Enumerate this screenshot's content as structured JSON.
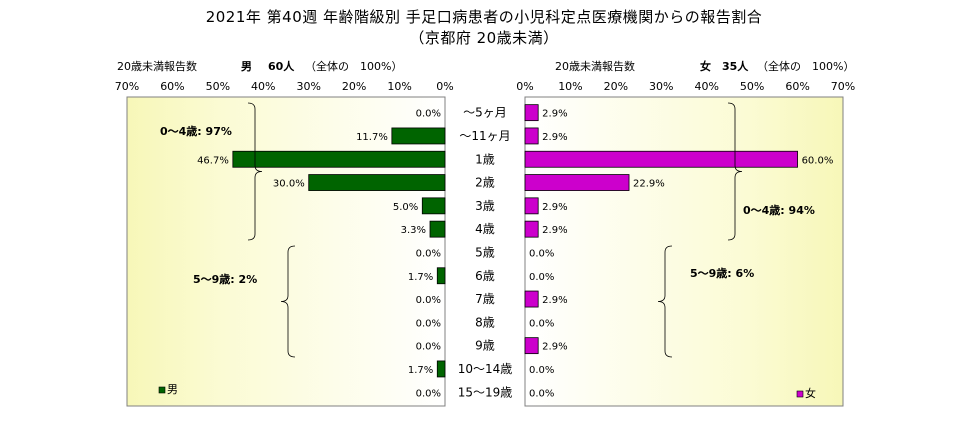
{
  "title_line1": "2021年 第40週 年齢階級別 手足口病患者の小児科定点医療機関からの報告割合",
  "title_line2": "（京都府 20歳未満）",
  "left_header": {
    "label": "20歳未満報告数",
    "sex": "男",
    "count": "60人",
    "total": "（全体の　100%）"
  },
  "right_header": {
    "label": "20歳未満報告数",
    "sex": "女",
    "count": "35人",
    "total": "（全体の　100%）"
  },
  "chart_data": {
    "type": "bar",
    "orientation": "horizontal-population-pyramid",
    "categories": [
      "～5ヶ月",
      "～11ヶ月",
      "1歳",
      "2歳",
      "3歳",
      "4歳",
      "5歳",
      "6歳",
      "7歳",
      "8歳",
      "9歳",
      "10～14歳",
      "15～19歳"
    ],
    "series": [
      {
        "name": "男",
        "color": "#006400",
        "values": [
          0.0,
          11.7,
          46.7,
          30.0,
          5.0,
          3.3,
          0.0,
          1.7,
          0.0,
          0.0,
          0.0,
          1.7,
          0.0
        ],
        "labels": [
          "0.0%",
          "11.7%",
          "46.7%",
          "30.0%",
          "5.0%",
          "3.3%",
          "0.0%",
          "1.7%",
          "0.0%",
          "0.0%",
          "0.0%",
          "1.7%",
          "0.0%"
        ]
      },
      {
        "name": "女",
        "color": "#cc00cc",
        "values": [
          2.9,
          2.9,
          60.0,
          22.9,
          2.9,
          2.9,
          0.0,
          0.0,
          2.9,
          0.0,
          2.9,
          0.0,
          0.0
        ],
        "labels": [
          "2.9%",
          "2.9%",
          "60.0%",
          "22.9%",
          "2.9%",
          "2.9%",
          "0.0%",
          "0.0%",
          "2.9%",
          "0.0%",
          "2.9%",
          "0.0%",
          "0.0%"
        ]
      }
    ],
    "xlim": [
      0,
      70
    ],
    "ticks": [
      "0%",
      "10%",
      "20%",
      "30%",
      "40%",
      "50%",
      "60%",
      "70%"
    ],
    "annotations": {
      "male_0_4": "0～4歳: 97%",
      "male_5_9": "5～9歳: 2%",
      "female_0_4": "0～4歳: 94%",
      "female_5_9": "5～9歳: 6%"
    },
    "legend": {
      "male": "男",
      "female": "女",
      "placement": "bottom"
    },
    "plot_background": "gradient white to pale yellow"
  }
}
